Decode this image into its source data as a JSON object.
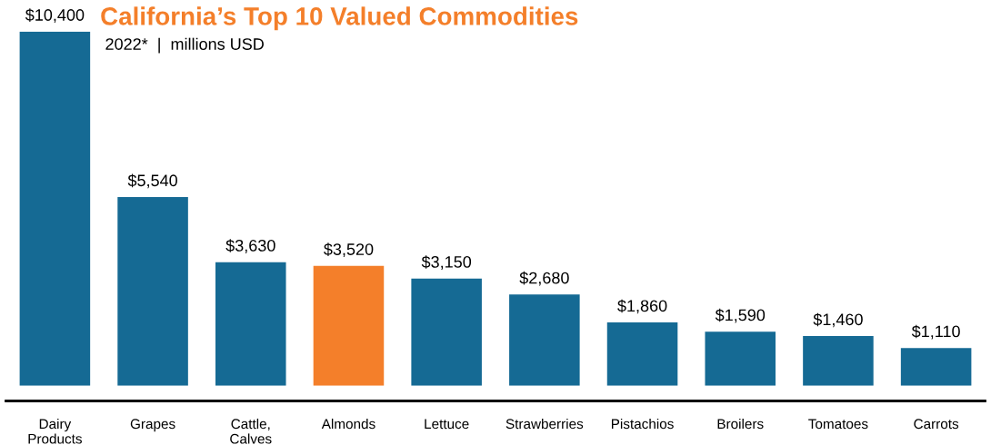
{
  "chart_data": {
    "type": "bar",
    "title": "California’s Top 10 Valued Commodities",
    "subtitle": "2022*  |  millions USD",
    "categories": [
      "Dairy\nProducts",
      "Grapes",
      "Cattle,\nCalves",
      "Almonds",
      "Lettuce",
      "Strawberries",
      "Pistachios",
      "Broilers",
      "Tomatoes",
      "Carrots"
    ],
    "values": [
      10400,
      5540,
      3630,
      3520,
      3150,
      2680,
      1860,
      1590,
      1460,
      1110
    ],
    "value_labels": [
      "$10,400",
      "$5,540",
      "$3,630",
      "$3,520",
      "$3,150",
      "$2,680",
      "$1,860",
      "$1,590",
      "$1,460",
      "$1,110"
    ],
    "colors": [
      "#156a94",
      "#156a94",
      "#156a94",
      "#f47f2a",
      "#156a94",
      "#156a94",
      "#156a94",
      "#156a94",
      "#156a94",
      "#156a94"
    ],
    "grid": false,
    "legend": false
  }
}
